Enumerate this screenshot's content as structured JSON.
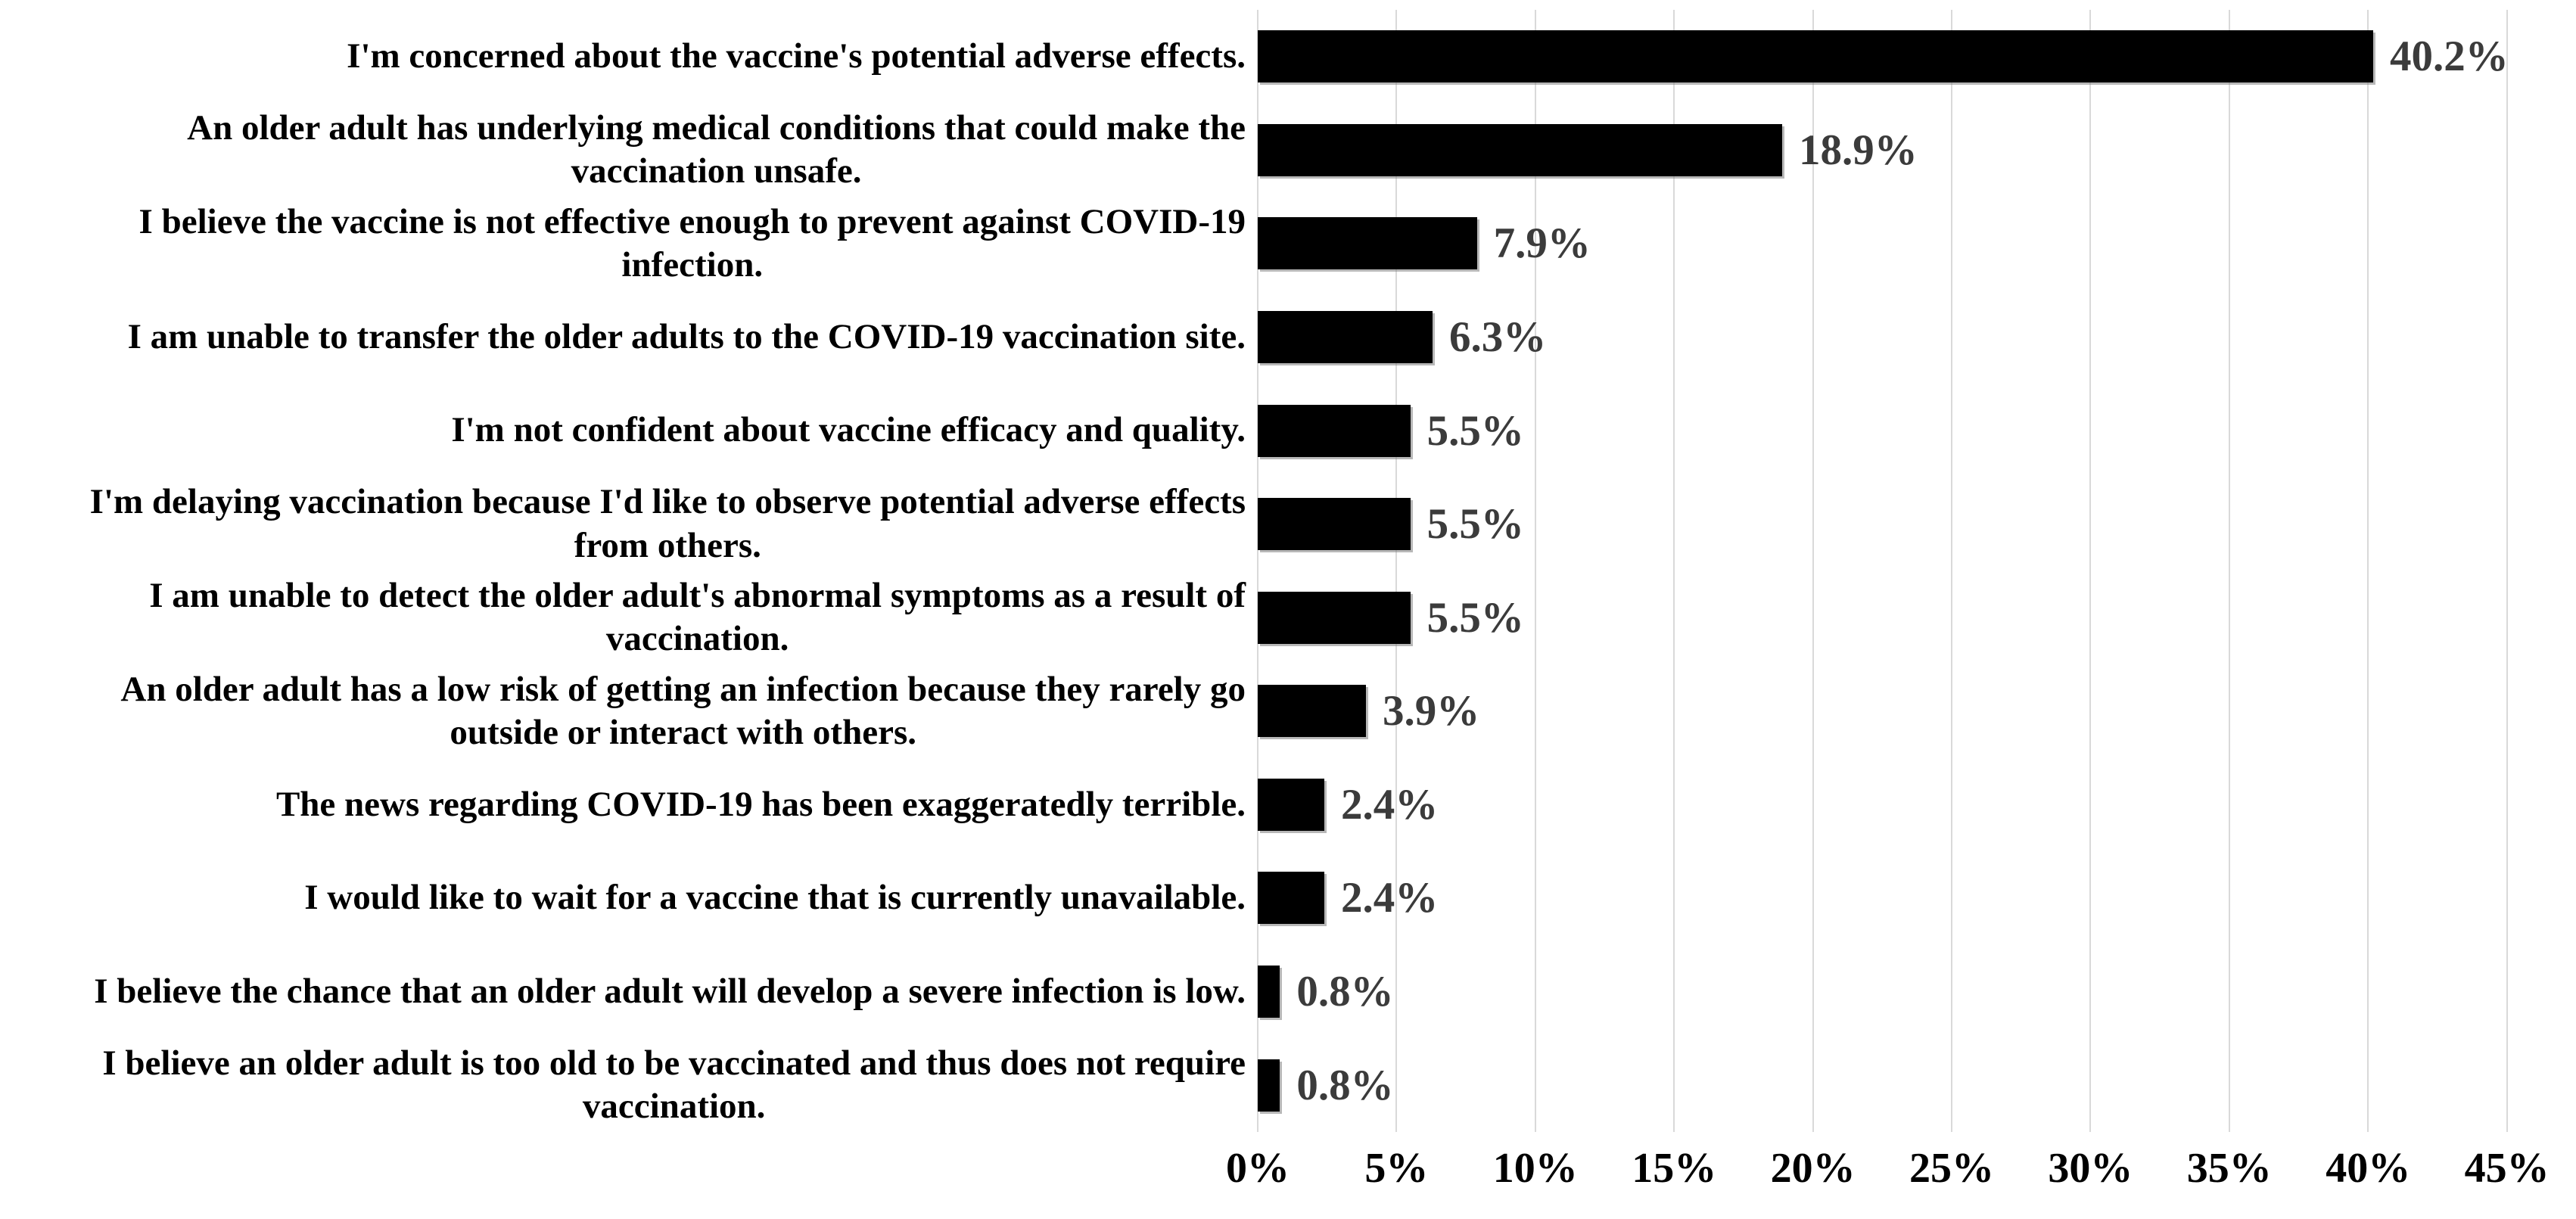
{
  "chart_data": {
    "type": "bar",
    "orientation": "horizontal",
    "title": "",
    "xlabel": "",
    "ylabel": "",
    "categories": [
      "I'm concerned about the vaccine's potential adverse effects.",
      "An older adult has underlying medical conditions that could make the\nvaccination unsafe.",
      "I believe the vaccine is not effective enough to prevent against COVID-19\ninfection.",
      "I am unable to transfer the older adults to the COVID-19 vaccination site.",
      "I'm not confident about vaccine efficacy and quality.",
      "I'm delaying vaccination because I'd like to observe potential adverse effects\nfrom others.",
      "I am unable to detect the older adult's abnormal symptoms as a result of\nvaccination.",
      "An older adult has a low risk of getting an infection because they rarely go\noutside or interact with others.",
      "The news regarding COVID-19 has been exaggeratedly terrible.",
      "I would like to wait for a vaccine that is currently unavailable.",
      "I believe the chance that an older adult will develop a severe infection is low.",
      "I believe an older adult is too old to be vaccinated and thus does not require\nvaccination."
    ],
    "values": [
      40.2,
      18.9,
      7.9,
      6.3,
      5.5,
      5.5,
      5.5,
      3.9,
      2.4,
      2.4,
      0.8,
      0.8
    ],
    "value_labels": [
      "40.2%",
      "18.9%",
      "7.9%",
      "6.3%",
      "5.5%",
      "5.5%",
      "5.5%",
      "3.9%",
      "2.4%",
      "2.4%",
      "0.8%",
      "0.8%"
    ],
    "xlim": [
      0,
      45
    ],
    "x_ticks": [
      "0%",
      "5%",
      "10%",
      "15%",
      "20%",
      "25%",
      "30%",
      "35%",
      "40%",
      "45%"
    ],
    "grid": "vertical",
    "legend": "none",
    "bar_color": "#000000",
    "value_label_color": "#3b3b3b",
    "axis_label_color": "#000000",
    "gridline_color": "#d9d9d9",
    "background_color": "#ffffff"
  }
}
